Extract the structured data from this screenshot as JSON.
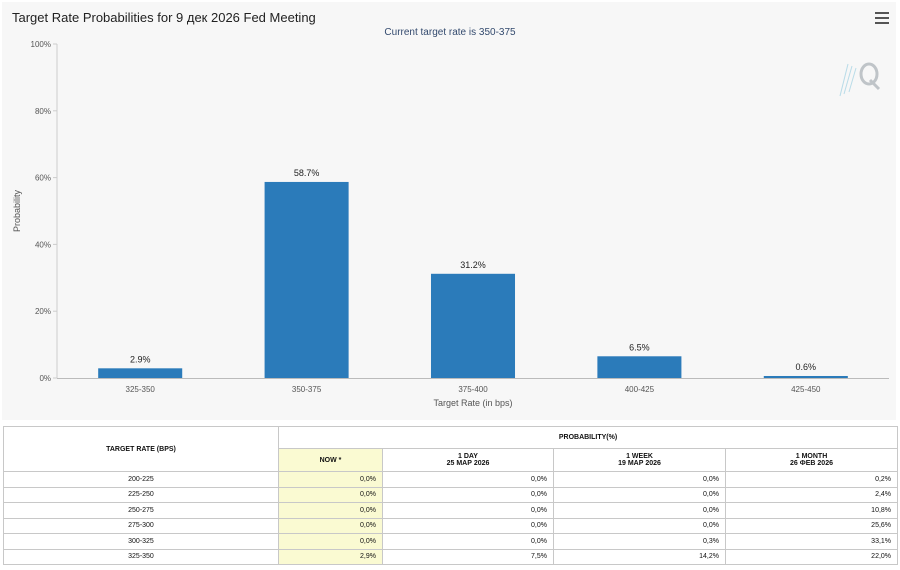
{
  "title": "Target Rate Probabilities for 9 дек 2026 Fed Meeting",
  "subtitle": "Current target rate is 350-375",
  "menu_icon": "hamburger-menu-icon",
  "logo_icon": "quikstrike-q-logo",
  "colors": {
    "bar": "#2b7bba",
    "now_column": "#fafad2",
    "panel": "#f7f7f7",
    "subtitle": "#334a6e"
  },
  "chart_data": {
    "type": "bar",
    "title": "Target Rate Probabilities for 9 дек 2026 Fed Meeting",
    "subtitle": "Current target rate is 350-375",
    "categories": [
      "325-350",
      "350-375",
      "375-400",
      "400-425",
      "425-450"
    ],
    "values": [
      2.9,
      58.7,
      31.2,
      6.5,
      0.6
    ],
    "data_labels": [
      "2.9%",
      "58.7%",
      "31.2%",
      "6.5%",
      "0.6%"
    ],
    "xlabel": "Target Rate (in bps)",
    "ylabel": "Probability",
    "ylim": [
      0,
      100
    ],
    "yticks": [
      "0%",
      "20%",
      "40%",
      "60%",
      "80%",
      "100%"
    ],
    "ytick_values": [
      0,
      20,
      40,
      60,
      80,
      100
    ],
    "grid": false
  },
  "table": {
    "header_rate": "TARGET RATE (BPS)",
    "header_prob": "PROBABILITY(%)",
    "cols": [
      {
        "line1": "NOW *",
        "line2": ""
      },
      {
        "line1": "1 DAY",
        "line2": "25 МАР 2026"
      },
      {
        "line1": "1 WEEK",
        "line2": "19 МАР 2026"
      },
      {
        "line1": "1 MONTH",
        "line2": "26 ФЕВ 2026"
      }
    ],
    "rows": [
      {
        "rate": "200-225",
        "now": "0,0%",
        "day": "0,0%",
        "week": "0,0%",
        "month": "0,2%"
      },
      {
        "rate": "225-250",
        "now": "0,0%",
        "day": "0,0%",
        "week": "0,0%",
        "month": "2,4%"
      },
      {
        "rate": "250-275",
        "now": "0,0%",
        "day": "0,0%",
        "week": "0,0%",
        "month": "10,8%"
      },
      {
        "rate": "275-300",
        "now": "0,0%",
        "day": "0,0%",
        "week": "0,0%",
        "month": "25,6%"
      },
      {
        "rate": "300-325",
        "now": "0,0%",
        "day": "0,0%",
        "week": "0,3%",
        "month": "33,1%"
      },
      {
        "rate": "325-350",
        "now": "2,9%",
        "day": "7,5%",
        "week": "14,2%",
        "month": "22,0%"
      }
    ]
  }
}
